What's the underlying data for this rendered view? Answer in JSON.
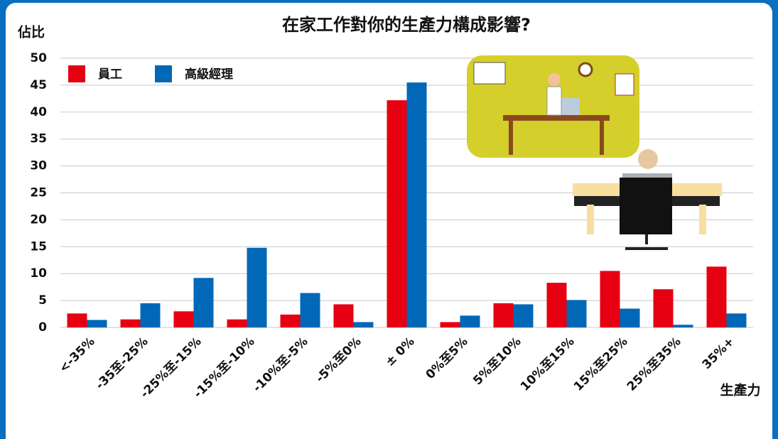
{
  "chart_data": {
    "type": "bar",
    "title": "在家工作對你的生產力構成影響?",
    "y_label": "佔比",
    "x_label": "生產力",
    "categories": [
      "<-35%",
      "-35至-25%",
      "-25%至-15%",
      "-15%至-10%",
      "-10%至-5%",
      "-5%至0%",
      "± 0%",
      "0%至5%",
      "5%至10%",
      "10%至15%",
      "15%至25%",
      "25%至35%",
      "35%+"
    ],
    "series": [
      {
        "name": "員工",
        "color": "#e60012",
        "values": [
          2.6,
          1.5,
          3.0,
          1.5,
          2.4,
          4.3,
          42.2,
          1.0,
          4.5,
          8.3,
          10.5,
          7.1,
          11.3
        ]
      },
      {
        "name": "高級經理",
        "color": "#0068b7",
        "values": [
          1.4,
          4.5,
          9.2,
          14.8,
          6.4,
          1.0,
          45.5,
          2.2,
          4.3,
          5.1,
          3.5,
          0.5,
          2.6
        ]
      }
    ],
    "ylim": [
      0,
      50
    ],
    "yticks": [
      0,
      5,
      10,
      15,
      20,
      25,
      30,
      35,
      40,
      45,
      50
    ],
    "grid": true,
    "legend": "upper left"
  }
}
